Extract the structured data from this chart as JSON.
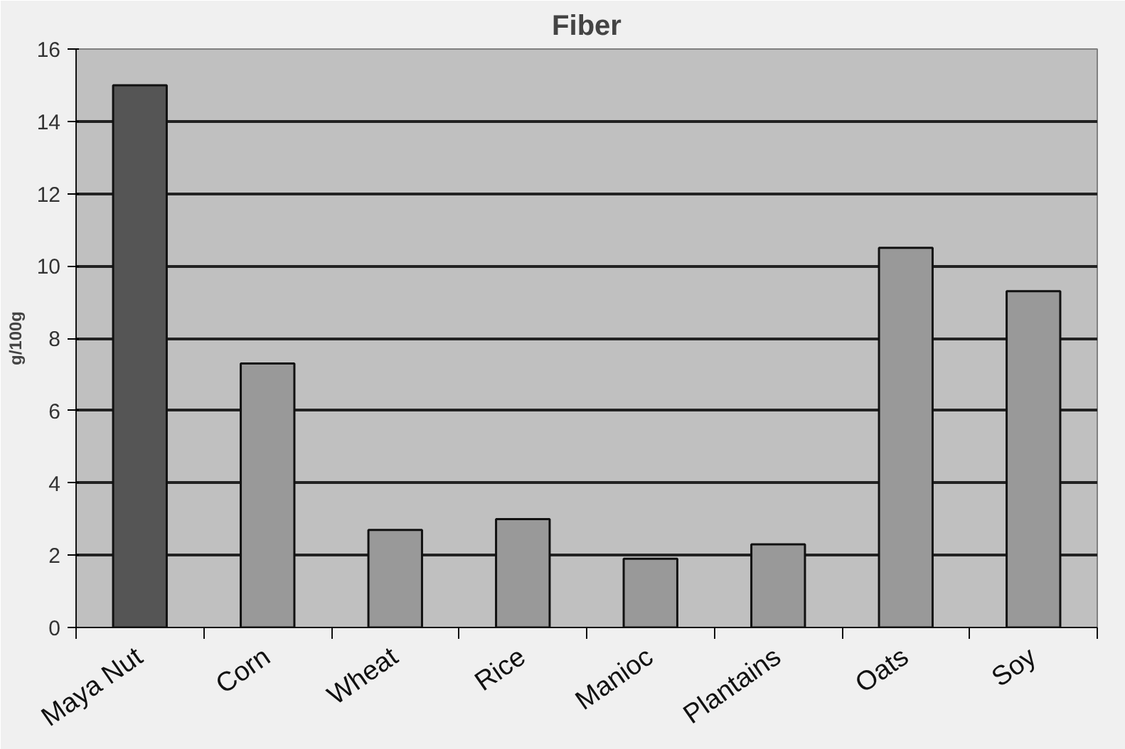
{
  "chart_data": {
    "type": "bar",
    "title": "Fiber",
    "ylabel": "g/100g",
    "categories": [
      "Maya Nut",
      "Corn",
      "Wheat",
      "Rice",
      "Manioc",
      "Plantains",
      "Oats",
      "Soy"
    ],
    "values": [
      15,
      7.3,
      2.7,
      3.0,
      1.9,
      2.3,
      10.5,
      9.3
    ],
    "colors": [
      "#555555",
      "#999999",
      "#999999",
      "#999999",
      "#999999",
      "#999999",
      "#999999",
      "#999999"
    ],
    "ylim": [
      0,
      16
    ],
    "yticks": [
      0,
      2,
      4,
      6,
      8,
      10,
      12,
      14,
      16
    ],
    "grid": "y"
  }
}
